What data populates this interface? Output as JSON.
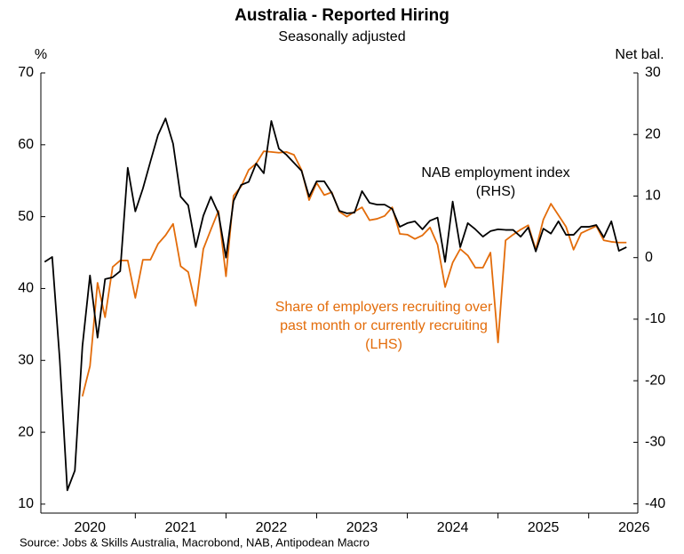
{
  "chart_data": {
    "type": "line",
    "title": "Australia - Reported Hiring",
    "subtitle": "Seasonally adjusted",
    "y_label": "%",
    "y2_label": "Net bal.",
    "source": "Source: Jobs & Skills Australia, Macrobond, NAB, Antipodean Macro",
    "categories": [
      null,
      null,
      null,
      null,
      null,
      null,
      "2020",
      null,
      null,
      null,
      null,
      null,
      null,
      null,
      null,
      null,
      null,
      null,
      "2021",
      null,
      null,
      null,
      null,
      null,
      null,
      null,
      null,
      null,
      null,
      null,
      "2022",
      null,
      null,
      null,
      null,
      null,
      null,
      null,
      null,
      null,
      null,
      null,
      "2023",
      null,
      null,
      null,
      null,
      null,
      null,
      null,
      null,
      null,
      null,
      null,
      "2024",
      null,
      null,
      null,
      null,
      null,
      null,
      null,
      null,
      null,
      null,
      null,
      "2025",
      null,
      null,
      null,
      null,
      null,
      null,
      null,
      null,
      null,
      null,
      null,
      "2026"
    ],
    "ylim": [
      8.75,
      70
    ],
    "yticks": [
      10,
      20,
      30,
      40,
      50,
      60,
      70
    ],
    "y2lim": [
      -41.5,
      30
    ],
    "y2ticks": [
      -40,
      -30,
      -20,
      -10,
      0,
      10,
      20,
      30
    ],
    "grid": false,
    "series": [
      {
        "color": "#e36c0a",
        "axis": "y",
        "values": [
          null,
          null,
          null,
          null,
          null,
          25.0,
          29.2,
          40.8,
          36.0,
          43.0,
          43.9,
          43.9,
          38.7,
          44.0,
          44.0,
          46.2,
          47.4,
          49.0,
          43.1,
          42.3,
          37.6,
          45.5,
          48.2,
          50.8,
          41.7,
          52.9,
          54.2,
          56.5,
          57.4,
          59.1,
          59.0,
          58.9,
          59.0,
          58.6,
          56.5,
          52.3,
          54.7,
          53.0,
          53.4,
          50.7,
          50.0,
          50.7,
          51.3,
          49.5,
          49.7,
          50.1,
          51.3,
          47.6,
          47.5,
          46.9,
          47.4,
          48.5,
          46.1,
          40.2,
          43.6,
          45.5,
          44.6,
          42.9,
          42.9,
          45.0,
          32.5,
          46.7,
          47.5,
          48.2,
          48.8,
          45.4,
          49.6,
          51.8,
          50.2,
          48.6,
          45.4,
          47.7,
          48.2,
          48.7,
          46.7,
          46.5,
          46.4,
          46.4,
          null
        ]
      },
      {
        "color": "#000000",
        "axis": "y2",
        "values": [
          -0.7,
          0.1,
          -16.6,
          -37.8,
          -34.6,
          -14.4,
          -2.9,
          -13.0,
          -3.5,
          -3.2,
          -2.2,
          14.6,
          7.5,
          11.2,
          15.6,
          19.9,
          22.6,
          18.5,
          9.9,
          8.5,
          1.7,
          6.8,
          9.9,
          7.2,
          0.0,
          9.2,
          11.8,
          12.3,
          15.3,
          13.7,
          22.2,
          17.7,
          16.7,
          15.4,
          14.1,
          9.9,
          12.4,
          12.4,
          10.5,
          7.6,
          7.2,
          7.3,
          10.8,
          8.9,
          8.6,
          8.6,
          7.9,
          5.0,
          5.6,
          5.9,
          4.6,
          6.0,
          6.5,
          -0.7,
          9.1,
          1.7,
          5.6,
          4.6,
          3.4,
          4.3,
          4.6,
          4.5,
          4.5,
          3.4,
          4.9,
          1.0,
          4.7,
          3.9,
          5.9,
          3.7,
          3.7,
          5.0,
          5.0,
          5.3,
          3.3,
          5.9,
          1.1,
          1.7,
          null
        ]
      }
    ],
    "annotations": [
      {
        "lines": [
          "Share of employers recruiting over",
          "past month or currently recruiting",
          "(LHS)"
        ]
      },
      {
        "lines": [
          "NAB employment index",
          "(RHS)"
        ]
      }
    ]
  }
}
